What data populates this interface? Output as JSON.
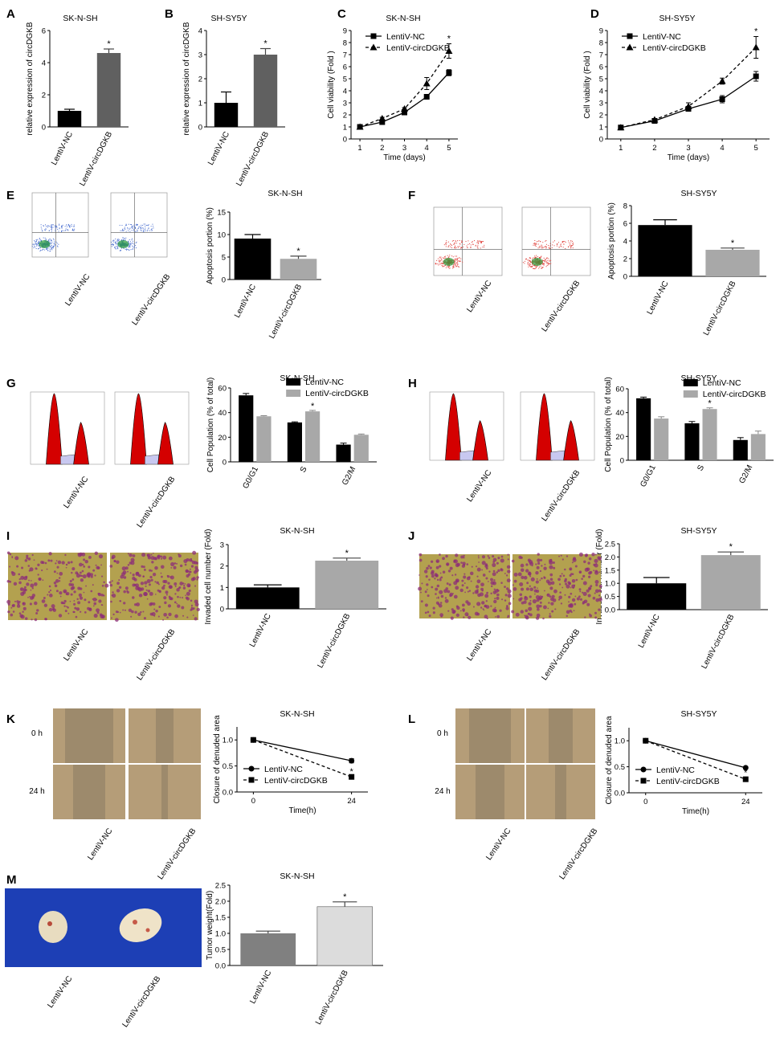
{
  "chart_data": [
    {
      "id": "A",
      "letter": "A",
      "type": "bar",
      "title": "SK-N-SH",
      "ylabel": "relative expression of circDGKB",
      "ylim": [
        0,
        6
      ],
      "yticks": [
        0,
        2,
        4,
        6
      ],
      "categories": [
        "LentiV-NC",
        "LentiV-circDGKB"
      ],
      "values": [
        1.0,
        4.6
      ],
      "errors": [
        0.1,
        0.25
      ],
      "colors": [
        "#000000",
        "#606060"
      ],
      "sig": [
        false,
        true
      ]
    },
    {
      "id": "B",
      "letter": "B",
      "type": "bar",
      "title": "SH-SY5Y",
      "ylabel": "relative expression of circDGKB",
      "ylim": [
        0,
        4
      ],
      "yticks": [
        0,
        1,
        2,
        3,
        4
      ],
      "categories": [
        "LentiV-NC",
        "LentiV-circDGKB"
      ],
      "values": [
        1.0,
        3.0
      ],
      "errors": [
        0.45,
        0.25
      ],
      "colors": [
        "#000000",
        "#606060"
      ],
      "sig": [
        false,
        true
      ]
    },
    {
      "id": "C",
      "letter": "C",
      "type": "line",
      "title": "SK-N-SH",
      "ylabel": "Cell viability (Fold )",
      "xlabel": "Time (days)",
      "ylim": [
        0,
        9
      ],
      "yticks": [
        0,
        1,
        2,
        3,
        4,
        5,
        6,
        7,
        8,
        9
      ],
      "x": [
        1,
        2,
        3,
        4,
        5
      ],
      "xticks": [
        1,
        2,
        3,
        4,
        5
      ],
      "xlim": [
        0.6,
        5.4
      ],
      "legend": "top-left",
      "series": [
        {
          "name": "LentiV-NC",
          "values": [
            1.0,
            1.4,
            2.2,
            3.5,
            5.5
          ],
          "errors": [
            0.05,
            0.1,
            0.1,
            0.2,
            0.25
          ],
          "marker": "square",
          "dash": false
        },
        {
          "name": "LentiV-circDGKB",
          "values": [
            1.0,
            1.7,
            2.5,
            4.6,
            7.3
          ],
          "errors": [
            0.05,
            0.1,
            0.1,
            0.5,
            0.6
          ],
          "marker": "triangle",
          "dash": true
        }
      ],
      "sig_x": [
        5
      ]
    },
    {
      "id": "D",
      "letter": "D",
      "type": "line",
      "title": "SH-SY5Y",
      "ylabel": "Cell viability (Fold )",
      "xlabel": "Time (days)",
      "ylim": [
        0,
        9
      ],
      "yticks": [
        0,
        1,
        2,
        3,
        4,
        5,
        6,
        7,
        8,
        9
      ],
      "x": [
        1,
        2,
        3,
        4,
        5
      ],
      "xticks": [
        1,
        2,
        3,
        4,
        5
      ],
      "xlim": [
        0.6,
        5.4
      ],
      "legend": "top-left",
      "series": [
        {
          "name": "LentiV-NC",
          "values": [
            0.95,
            1.5,
            2.5,
            3.3,
            5.2
          ],
          "errors": [
            0.05,
            0.1,
            0.15,
            0.3,
            0.4
          ],
          "marker": "square",
          "dash": false
        },
        {
          "name": "LentiV-circDGKB",
          "values": [
            0.95,
            1.6,
            2.7,
            4.8,
            7.6
          ],
          "errors": [
            0.05,
            0.1,
            0.3,
            0.25,
            0.9
          ],
          "marker": "triangle",
          "dash": true
        }
      ],
      "sig_x": [
        5
      ]
    },
    {
      "id": "E",
      "letter": "E",
      "type": "bar",
      "title": "SK-N-SH",
      "ylabel": "Apoptosis portion (%)",
      "ylim": [
        0,
        15
      ],
      "yticks": [
        0,
        5,
        10,
        15
      ],
      "categories": [
        "LentiV-NC",
        "LentiV-circDGKB"
      ],
      "values": [
        9.1,
        4.6
      ],
      "errors": [
        0.9,
        0.6
      ],
      "colors": [
        "#000000",
        "#a8a8a8"
      ],
      "sig": [
        false,
        true
      ]
    },
    {
      "id": "F",
      "letter": "F",
      "type": "bar",
      "title": "SH-SY5Y",
      "ylabel": "Apoptosis portion (%)",
      "ylim": [
        0,
        8
      ],
      "yticks": [
        0,
        2,
        4,
        6,
        8
      ],
      "categories": [
        "LentiV-NC",
        "LentiV-circDGKB"
      ],
      "values": [
        5.8,
        3.0
      ],
      "errors": [
        0.6,
        0.2
      ],
      "colors": [
        "#000000",
        "#a8a8a8"
      ],
      "sig": [
        false,
        true
      ]
    },
    {
      "id": "G",
      "letter": "G",
      "type": "bar",
      "title": "SK-N-SH",
      "ylabel": "Cell Population (% of total)",
      "ylim": [
        0,
        60
      ],
      "yticks": [
        0,
        20,
        40,
        60
      ],
      "legend": "top-right",
      "categories": [
        "G0/G1",
        "S",
        "G2/M"
      ],
      "series": [
        {
          "name": "LentiV-NC",
          "values": [
            54,
            32,
            14
          ],
          "errors": [
            1.5,
            0.5,
            1.2
          ],
          "color": "#000000"
        },
        {
          "name": "LentiV-circDGKB",
          "values": [
            37,
            41,
            22
          ],
          "errors": [
            0.5,
            0.8,
            0.6
          ],
          "color": "#a8a8a8"
        }
      ],
      "sig_categories": [
        1
      ]
    },
    {
      "id": "H",
      "letter": "H",
      "type": "bar",
      "title": "SH-SY5Y",
      "ylabel": "Cell Population (% of total)",
      "ylim": [
        0,
        60
      ],
      "yticks": [
        0,
        20,
        40,
        60
      ],
      "legend": "top-right",
      "categories": [
        "G0/G1",
        "S",
        "G2/M"
      ],
      "series": [
        {
          "name": "LentiV-NC",
          "values": [
            52,
            31,
            17
          ],
          "errors": [
            1.0,
            1.5,
            2.0
          ],
          "color": "#000000"
        },
        {
          "name": "LentiV-circDGKB",
          "values": [
            35,
            43,
            22
          ],
          "errors": [
            1.5,
            1.0,
            2.5
          ],
          "color": "#a8a8a8"
        }
      ],
      "sig_categories": [
        1
      ]
    },
    {
      "id": "I",
      "letter": "I",
      "type": "bar",
      "title": "SK-N-SH",
      "ylabel": "Invaded cell number (Fold)",
      "ylim": [
        0,
        3
      ],
      "yticks": [
        0,
        1,
        2,
        3
      ],
      "categories": [
        "LentiV-NC",
        "LentiV-circDGKB"
      ],
      "values": [
        1.0,
        2.25
      ],
      "errors": [
        0.12,
        0.12
      ],
      "colors": [
        "#000000",
        "#a8a8a8"
      ],
      "sig": [
        false,
        true
      ]
    },
    {
      "id": "J",
      "letter": "J",
      "type": "bar",
      "title": "SH-SY5Y",
      "ylabel": "Invaded cell number (Fold)",
      "ylim": [
        0,
        2.5
      ],
      "yticks": [
        0.0,
        0.5,
        1.0,
        1.5,
        2.0,
        2.5
      ],
      "ytick_decimals": 1,
      "categories": [
        "LentiV-NC",
        "LentiV-circDGKB"
      ],
      "values": [
        1.0,
        2.07
      ],
      "errors": [
        0.22,
        0.12
      ],
      "colors": [
        "#000000",
        "#a8a8a8"
      ],
      "sig": [
        false,
        true
      ]
    },
    {
      "id": "K",
      "letter": "K",
      "type": "line",
      "title": "SK-N-SH",
      "ylabel": "Closure of denuded area",
      "xlabel": "Time(h)",
      "ylim": [
        0,
        1.25
      ],
      "yticks": [
        0.0,
        0.5,
        1.0
      ],
      "ytick_decimals": 1,
      "x": [
        0,
        24
      ],
      "xticks": [
        0,
        24
      ],
      "xlim": [
        -4,
        28
      ],
      "legend": "bottom-left",
      "series": [
        {
          "name": "LentiV-NC",
          "values": [
            1.0,
            0.6
          ],
          "errors": [
            0,
            0.04
          ],
          "marker": "circle",
          "dash": false
        },
        {
          "name": "LentiV-circDGKB",
          "values": [
            1.0,
            0.29
          ],
          "errors": [
            0,
            0.04
          ],
          "marker": "square",
          "dash": true
        }
      ],
      "sig_x": [
        24
      ]
    },
    {
      "id": "L",
      "letter": "L",
      "type": "line",
      "title": "SH-SY5Y",
      "ylabel": "Closure of denuded area",
      "xlabel": "Time(h)",
      "ylim": [
        0,
        1.25
      ],
      "yticks": [
        0.0,
        0.5,
        1.0
      ],
      "ytick_decimals": 1,
      "x": [
        0,
        24
      ],
      "xticks": [
        0,
        24
      ],
      "xlim": [
        -4,
        28
      ],
      "legend": "bottom-left",
      "series": [
        {
          "name": "LentiV-NC",
          "values": [
            1.0,
            0.48
          ],
          "errors": [
            0,
            0.02
          ],
          "marker": "circle",
          "dash": false
        },
        {
          "name": "LentiV-circDGKB",
          "values": [
            1.0,
            0.26
          ],
          "errors": [
            0,
            0.02
          ],
          "marker": "square",
          "dash": true
        }
      ],
      "sig_x": [
        24
      ]
    },
    {
      "id": "M",
      "letter": "M",
      "type": "bar",
      "title": "SK-N-SH",
      "ylabel": "Tumor weight(Fold)",
      "ylim": [
        0,
        2.5
      ],
      "yticks": [
        0.0,
        0.5,
        1.0,
        1.5,
        2.0,
        2.5
      ],
      "ytick_decimals": 1,
      "categories": [
        "LentiV-NC",
        "LentiV-circDGKB"
      ],
      "values": [
        1.0,
        1.83
      ],
      "errors": [
        0.07,
        0.15
      ],
      "colors": [
        "#808080",
        "#dcdcdc"
      ],
      "sig": [
        false,
        true
      ]
    }
  ],
  "images": {
    "E": {
      "labels": [
        "LentiV-NC",
        "LentiV-circDGKB"
      ],
      "style": "flow-blue"
    },
    "F": {
      "labels": [
        "LentiV-NC",
        "LentiV-circDGKB"
      ],
      "style": "flow-red"
    },
    "G": {
      "labels": [
        "LentiV-NC",
        "LentiV-circDGKB"
      ],
      "style": "histogram"
    },
    "H": {
      "labels": [
        "LentiV-NC",
        "LentiV-circDGKB"
      ],
      "style": "histogram"
    },
    "I": {
      "labels": [
        "LentiV-NC",
        "LentiV-circDGKB"
      ],
      "style": "transwell"
    },
    "J": {
      "labels": [
        "LentiV-NC",
        "LentiV-circDGKB"
      ],
      "style": "transwell"
    },
    "K": {
      "labels": [
        "LentiV-NC",
        "LentiV-circDGKB"
      ],
      "row_labels": [
        "0 h",
        "24 h"
      ],
      "style": "wound"
    },
    "L": {
      "labels": [
        "LentiV-NC",
        "LentiV-circDGKB"
      ],
      "row_labels": [
        "0 h",
        "24 h"
      ],
      "style": "wound"
    },
    "M": {
      "labels": [
        "LentiV-NC",
        "LentiV-circDGKB"
      ],
      "style": "tumor"
    }
  },
  "colors": {
    "marker_sig": "*",
    "flow_blue": "#4a6fd0",
    "flow_red": "#e0403a",
    "hist_red": "#d40000",
    "transwell_bg": "#b3a14f",
    "transwell_cell": "#8c2e78",
    "wound_bg": "#b59d78",
    "tumor_bg": "#1d3fb5"
  }
}
